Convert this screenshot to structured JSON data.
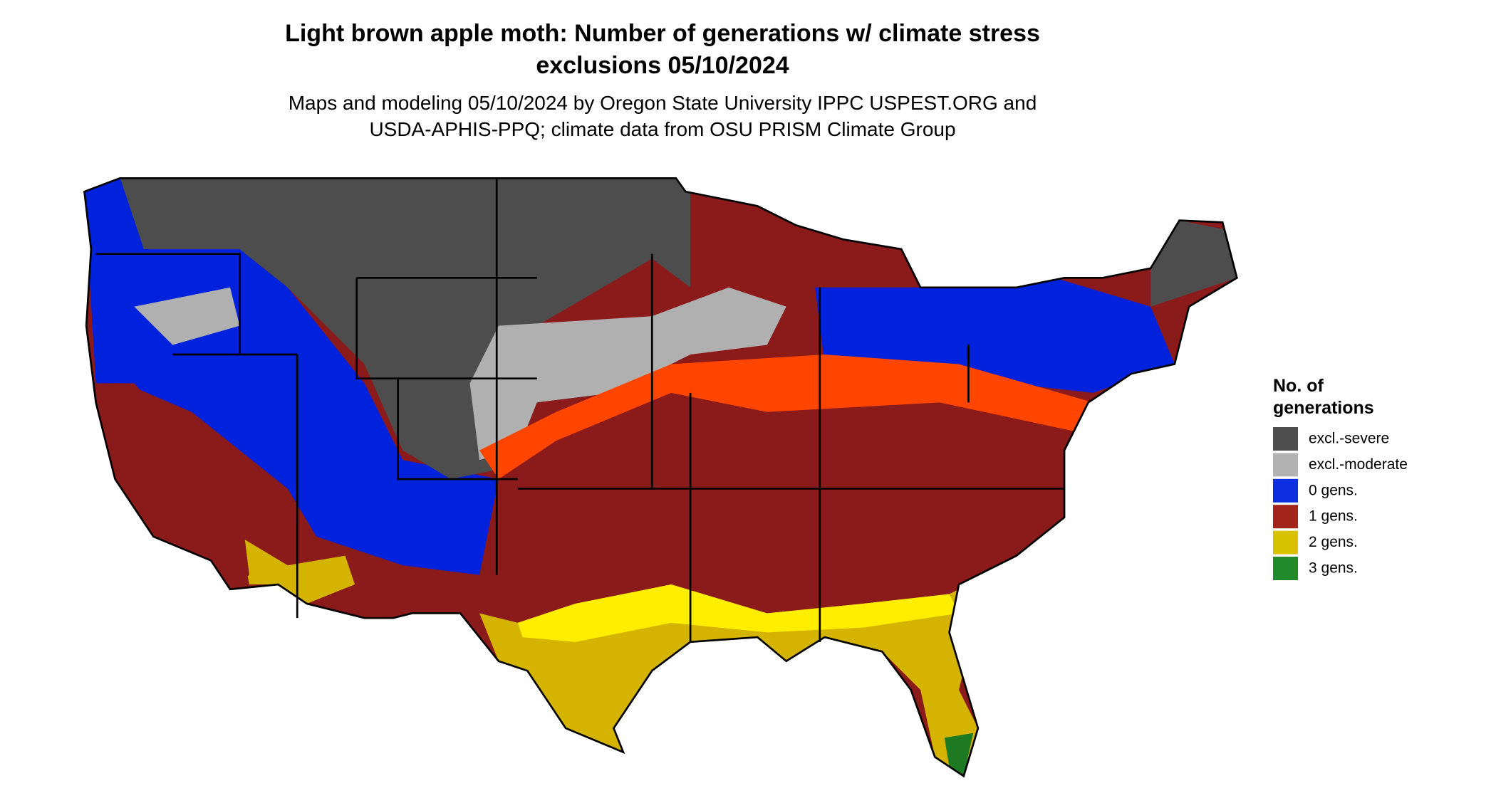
{
  "title": [
    "Light brown apple moth: Number of generations w/ climate stress",
    "exclusions 05/10/2024"
  ],
  "subtitle": [
    "Maps and modeling 05/10/2024 by Oregon State University IPPC USPEST.ORG and",
    "USDA-APHIS-PPQ; climate data from OSU PRISM Climate Group"
  ],
  "legend": {
    "title": [
      "No. of",
      "generations"
    ],
    "items": [
      {
        "label": "excl.-severe",
        "color": "#4d4d4d"
      },
      {
        "label": "excl.-moderate",
        "color": "#b3b3b3"
      },
      {
        "label": "0 gens.",
        "color": "#0a2ee0"
      },
      {
        "label": "1 gens.",
        "color": "#a3241b"
      },
      {
        "label": "2 gens.",
        "color": "#d9c200"
      },
      {
        "label": "3 gens.",
        "color": "#218a2b"
      }
    ]
  }
}
